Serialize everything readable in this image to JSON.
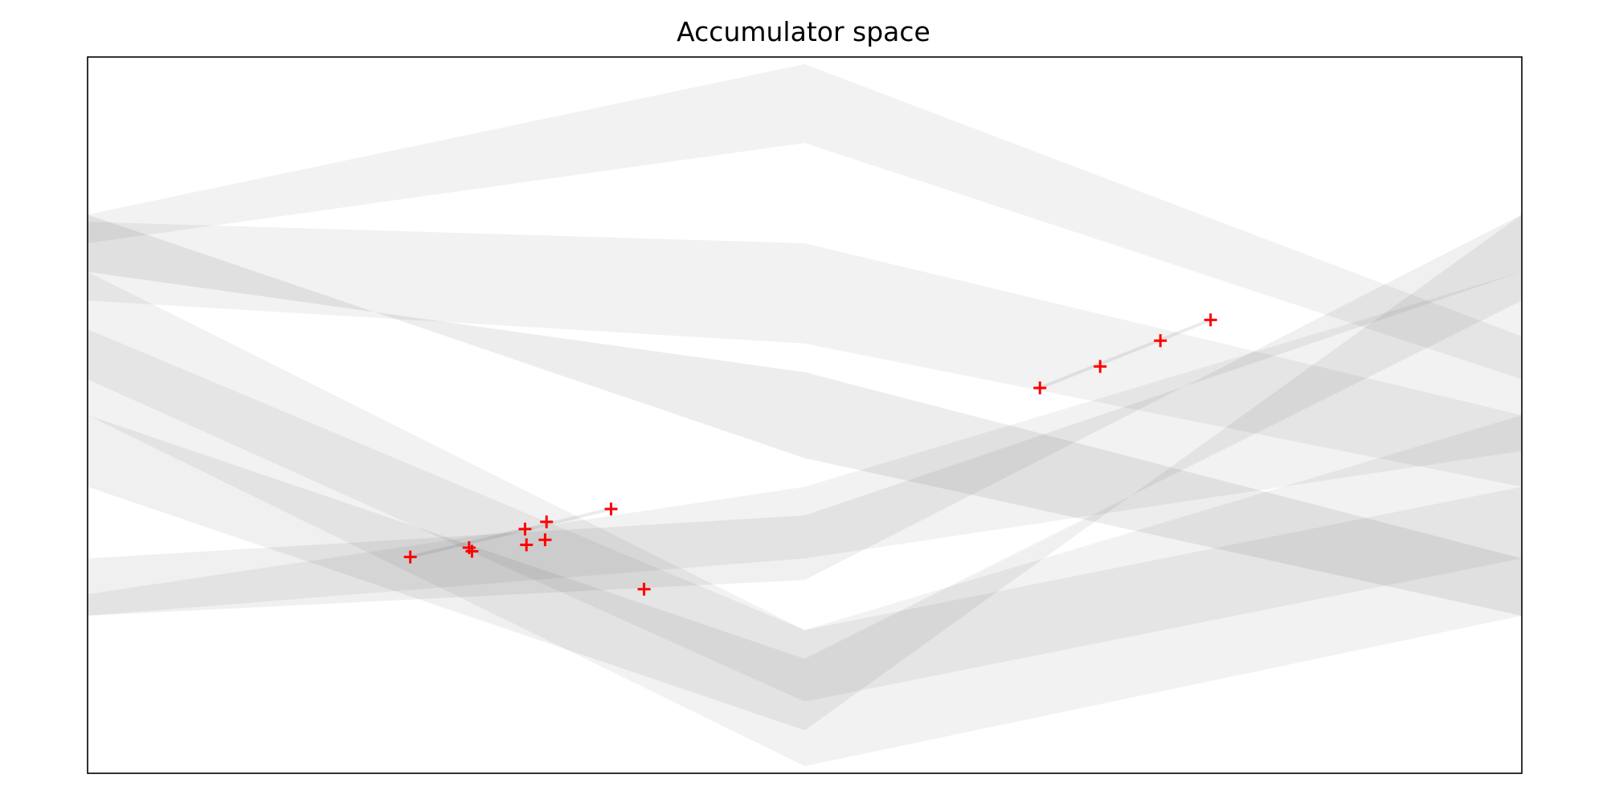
{
  "chart_data": {
    "type": "heatmap",
    "title": "Accumulator space",
    "xlabel": "",
    "ylabel": "",
    "axes_ticks": false,
    "grid": false,
    "colormap": "gray_r",
    "x_range": [
      0,
      1
    ],
    "y_range": [
      0,
      1
    ],
    "points": [
      {
        "x": 0.225,
        "y": 0.302
      },
      {
        "x": 0.266,
        "y": 0.315
      },
      {
        "x": 0.268,
        "y": 0.31
      },
      {
        "x": 0.305,
        "y": 0.341
      },
      {
        "x": 0.306,
        "y": 0.319
      },
      {
        "x": 0.319,
        "y": 0.326
      },
      {
        "x": 0.32,
        "y": 0.351
      },
      {
        "x": 0.365,
        "y": 0.369
      },
      {
        "x": 0.388,
        "y": 0.257
      },
      {
        "x": 0.664,
        "y": 0.538
      },
      {
        "x": 0.706,
        "y": 0.568
      },
      {
        "x": 0.748,
        "y": 0.604
      },
      {
        "x": 0.783,
        "y": 0.633
      }
    ],
    "point_marker": "+",
    "point_color": "#ff0000"
  }
}
